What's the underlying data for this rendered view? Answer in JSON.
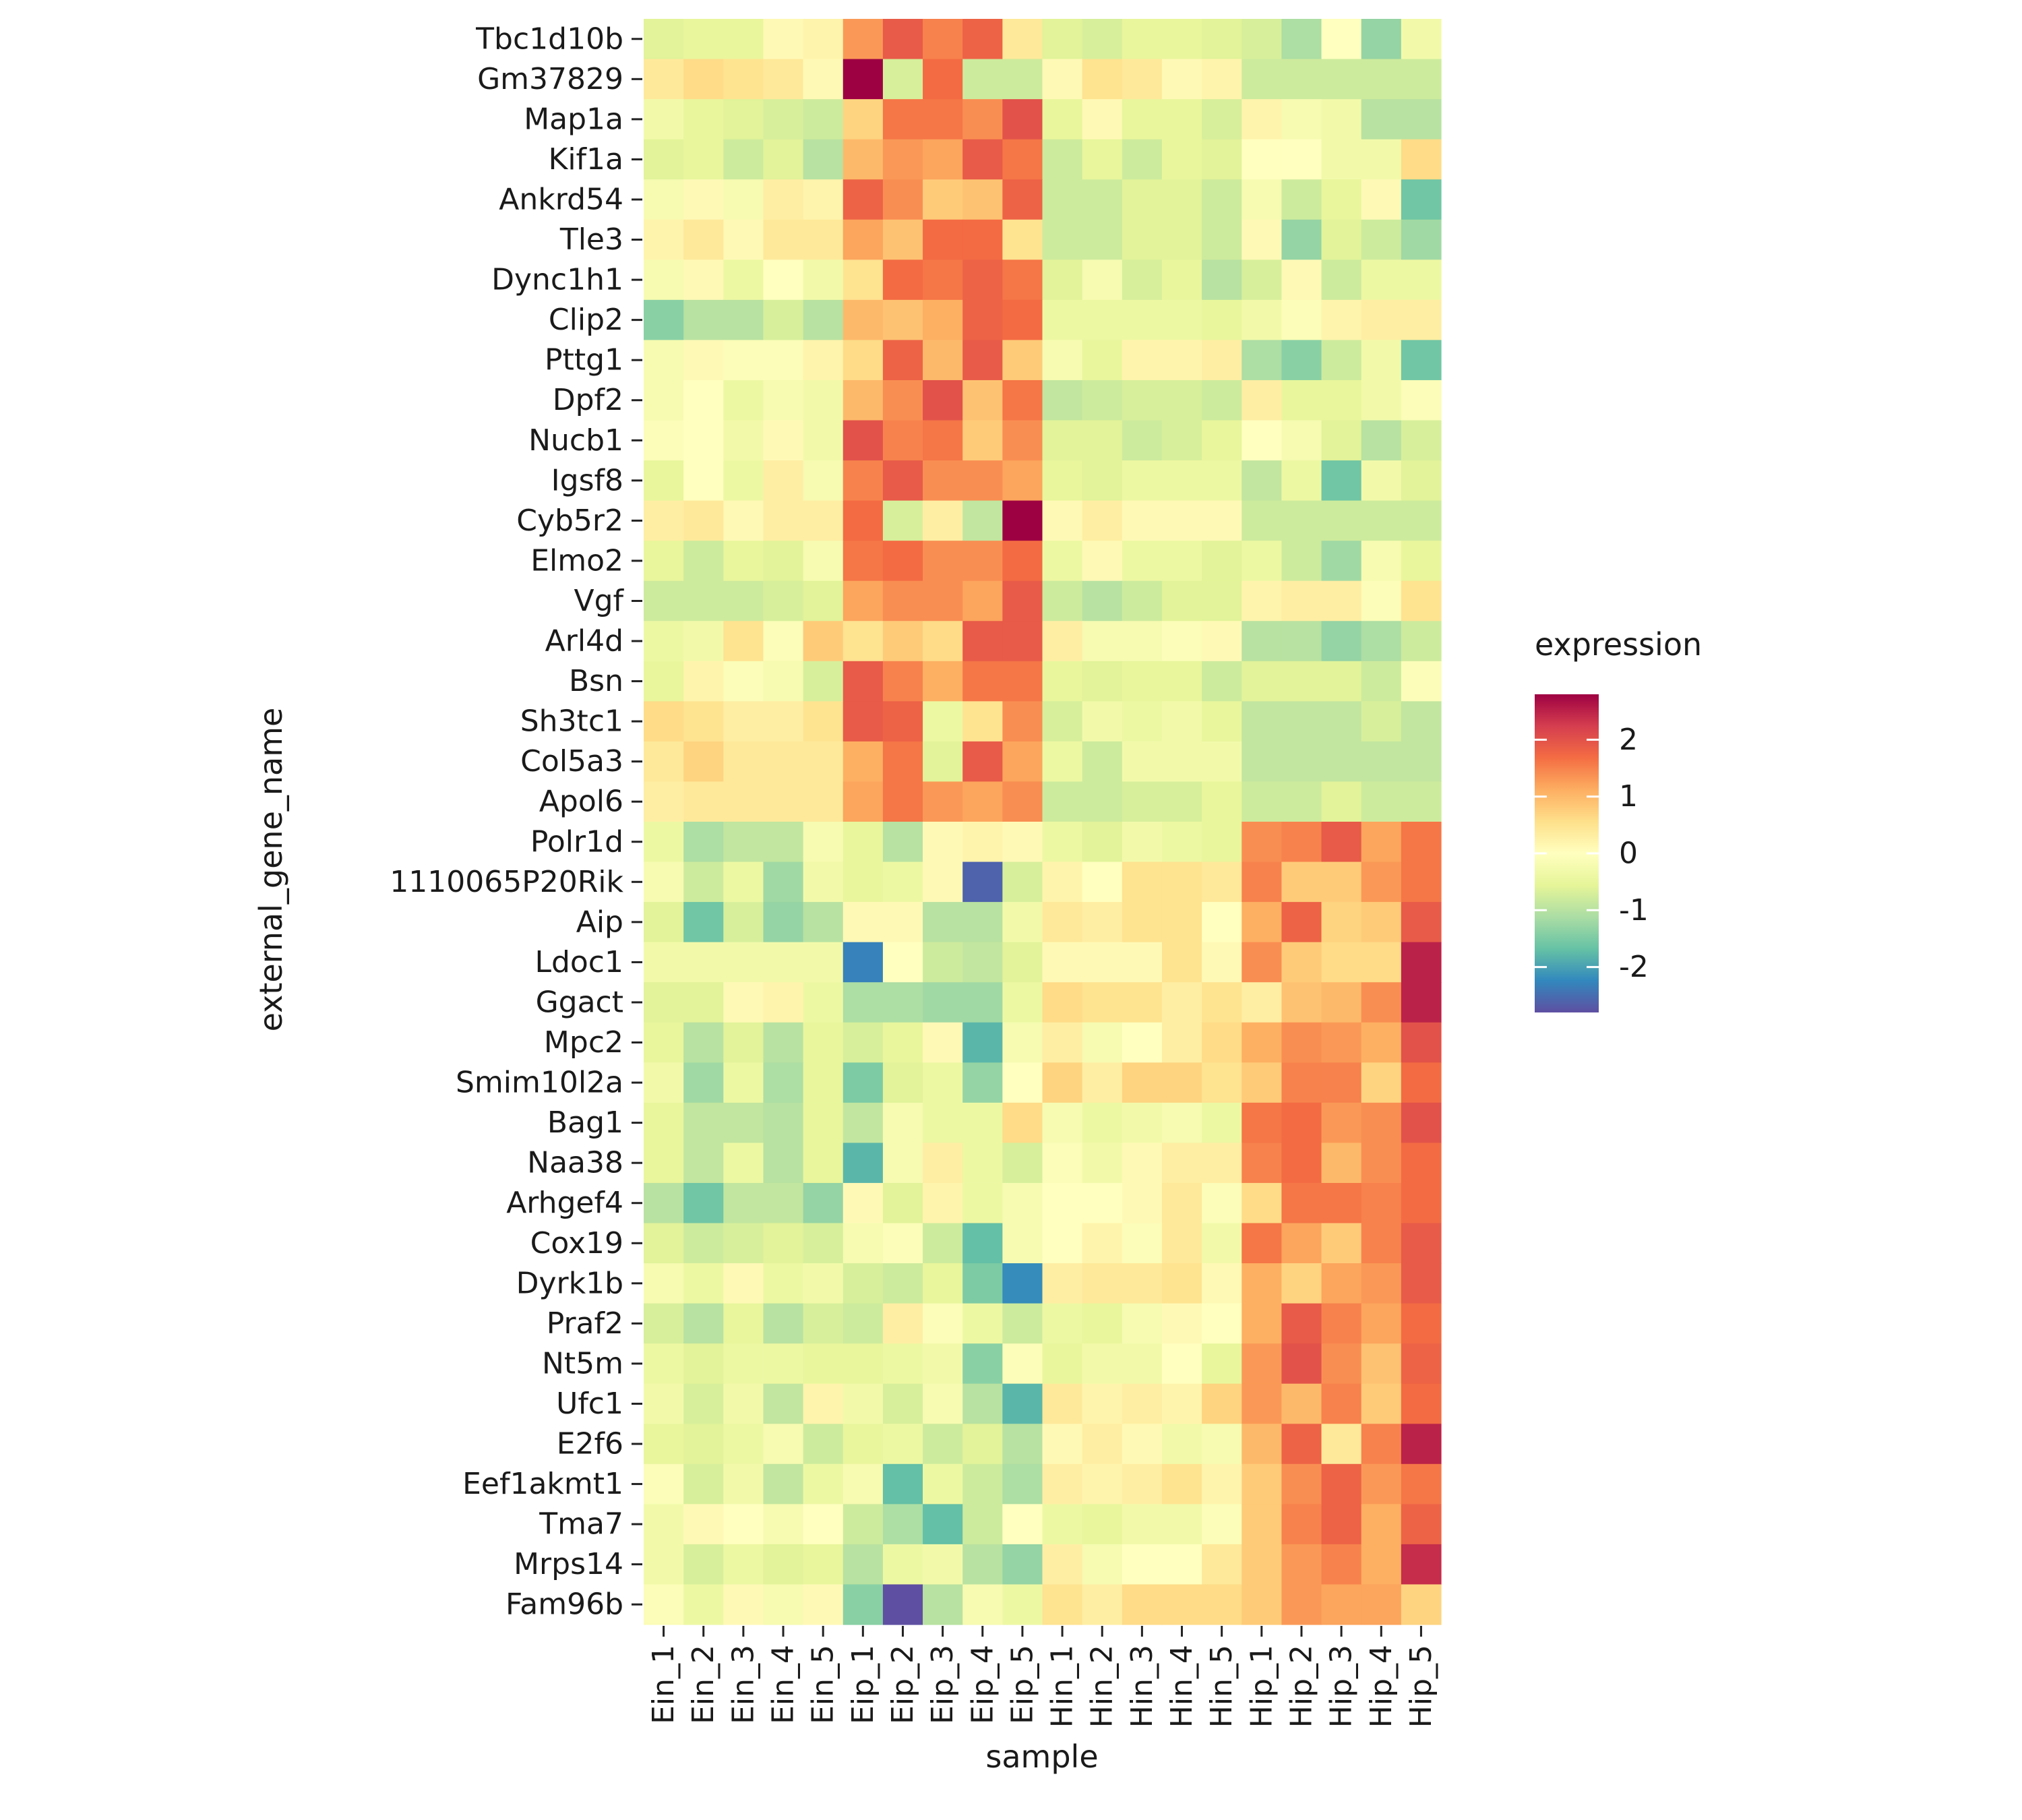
{
  "chart_data": {
    "type": "heatmap",
    "xlabel": "sample",
    "ylabel": "external_gene_name",
    "legend": {
      "title": "expression",
      "ticks": [
        2,
        1,
        0,
        -1,
        -2
      ],
      "range": [
        -2.8,
        2.8
      ],
      "position": "right"
    },
    "colormap": [
      "#5e4fa2",
      "#3288bd",
      "#66c2a5",
      "#abdda4",
      "#e6f598",
      "#ffffbf",
      "#fee08b",
      "#fdae61",
      "#f46d43",
      "#d53e4f",
      "#9e0142"
    ],
    "columns": [
      "Ein_1",
      "Ein_2",
      "Ein_3",
      "Ein_4",
      "Ein_5",
      "Eip_1",
      "Eip_2",
      "Eip_3",
      "Eip_4",
      "Eip_5",
      "Hin_1",
      "Hin_2",
      "Hin_3",
      "Hin_4",
      "Hin_5",
      "Hip_1",
      "Hip_2",
      "Hip_3",
      "Hip_4",
      "Hip_5"
    ],
    "rows": [
      "Tbc1d10b",
      "Gm37829",
      "Map1a",
      "Kif1a",
      "Ankrd54",
      "Tle3",
      "Dync1h1",
      "Clip2",
      "Pttg1",
      "Dpf2",
      "Nucb1",
      "Igsf8",
      "Cyb5r2",
      "Elmo2",
      "Vgf",
      "Arl4d",
      "Bsn",
      "Sh3tc1",
      "Col5a3",
      "Apol6",
      "Polr1d",
      "1110065P20Rik",
      "Aip",
      "Ldoc1",
      "Ggact",
      "Mpc2",
      "Smim10l2a",
      "Bag1",
      "Naa38",
      "Arhgef4",
      "Cox19",
      "Dyrk1b",
      "Praf2",
      "Nt5m",
      "Ufc1",
      "E2f6",
      "Eef1akmt1",
      "Tma7",
      "Mrps14",
      "Fam96b"
    ],
    "values": [
      [
        -0.6,
        -0.5,
        -0.5,
        0.1,
        0.2,
        1.3,
        1.9,
        1.5,
        1.8,
        0.4,
        -0.6,
        -0.7,
        -0.5,
        -0.5,
        -0.6,
        -0.7,
        -1.1,
        0.0,
        -1.3,
        -0.3
      ],
      [
        0.4,
        0.6,
        0.5,
        0.4,
        0.1,
        2.8,
        -0.7,
        1.7,
        -0.8,
        -0.8,
        0.1,
        0.5,
        0.4,
        0.1,
        0.2,
        -0.8,
        -0.8,
        -0.8,
        -0.8,
        -0.8
      ],
      [
        -0.3,
        -0.5,
        -0.6,
        -0.7,
        -0.8,
        0.7,
        1.6,
        1.6,
        1.4,
        2.0,
        -0.5,
        0.1,
        -0.5,
        -0.5,
        -0.7,
        0.2,
        -0.2,
        -0.3,
        -1.0,
        -1.0
      ],
      [
        -0.6,
        -0.5,
        -0.8,
        -0.6,
        -1.0,
        1.0,
        1.3,
        1.2,
        1.9,
        1.6,
        -0.8,
        -0.5,
        -0.8,
        -0.5,
        -0.6,
        0.0,
        0.0,
        -0.3,
        -0.3,
        0.6
      ],
      [
        -0.2,
        0.1,
        -0.2,
        0.3,
        0.2,
        1.8,
        1.4,
        0.8,
        0.9,
        1.8,
        -0.8,
        -0.8,
        -0.6,
        -0.6,
        -0.8,
        -0.2,
        -0.8,
        -0.5,
        0.1,
        -1.6
      ],
      [
        0.2,
        0.4,
        0.1,
        0.4,
        0.4,
        1.2,
        0.9,
        1.7,
        1.7,
        0.5,
        -0.8,
        -0.8,
        -0.6,
        -0.6,
        -0.8,
        0.1,
        -1.3,
        -0.6,
        -0.8,
        -1.2
      ],
      [
        -0.2,
        0.1,
        -0.4,
        0.0,
        -0.3,
        0.5,
        1.7,
        1.6,
        1.8,
        1.6,
        -0.6,
        -0.2,
        -0.7,
        -0.5,
        -1.0,
        -0.7,
        0.1,
        -0.8,
        -0.4,
        -0.4
      ],
      [
        -1.4,
        -1.0,
        -1.0,
        -0.7,
        -1.0,
        1.0,
        0.9,
        1.1,
        1.8,
        1.7,
        -0.4,
        -0.4,
        -0.4,
        -0.4,
        -0.5,
        -0.3,
        -0.1,
        0.2,
        0.3,
        0.3
      ],
      [
        -0.2,
        0.1,
        -0.1,
        -0.1,
        0.2,
        0.6,
        1.8,
        1.0,
        1.9,
        0.8,
        -0.2,
        -0.5,
        0.2,
        0.2,
        0.3,
        -1.1,
        -1.4,
        -0.8,
        -0.3,
        -1.6
      ],
      [
        -0.2,
        0.0,
        -0.4,
        -0.2,
        -0.3,
        1.0,
        1.4,
        2.0,
        0.9,
        1.6,
        -0.9,
        -0.8,
        -0.7,
        -0.7,
        -0.8,
        0.3,
        -0.5,
        -0.5,
        -0.3,
        -0.1
      ],
      [
        -0.1,
        0.0,
        -0.3,
        0.1,
        -0.3,
        2.0,
        1.5,
        1.6,
        0.8,
        1.4,
        -0.6,
        -0.6,
        -0.8,
        -0.7,
        -0.5,
        0.0,
        -0.2,
        -0.6,
        -1.0,
        -0.7
      ],
      [
        -0.5,
        0.0,
        -0.4,
        0.3,
        -0.2,
        1.5,
        1.9,
        1.4,
        1.4,
        1.2,
        -0.5,
        -0.6,
        -0.4,
        -0.4,
        -0.4,
        -0.9,
        -0.4,
        -1.6,
        -0.3,
        -0.6
      ],
      [
        0.3,
        0.4,
        0.1,
        0.3,
        0.3,
        1.7,
        -0.7,
        0.3,
        -0.9,
        2.8,
        0.1,
        0.3,
        0.1,
        0.1,
        0.1,
        -0.8,
        -0.8,
        -0.8,
        -0.8,
        -0.8
      ],
      [
        -0.5,
        -0.8,
        -0.5,
        -0.6,
        -0.2,
        1.6,
        1.7,
        1.4,
        1.4,
        1.7,
        -0.4,
        0.1,
        -0.4,
        -0.4,
        -0.6,
        -0.4,
        -0.8,
        -1.2,
        -0.2,
        -0.5
      ],
      [
        -0.8,
        -0.8,
        -0.8,
        -0.7,
        -0.6,
        1.2,
        1.4,
        1.4,
        1.2,
        1.9,
        -0.8,
        -1.0,
        -0.8,
        -0.6,
        -0.6,
        0.2,
        0.3,
        0.3,
        -0.1,
        0.5
      ],
      [
        -0.4,
        -0.3,
        0.5,
        -0.1,
        0.8,
        0.5,
        0.8,
        0.6,
        1.9,
        1.9,
        0.3,
        -0.2,
        -0.2,
        -0.1,
        0.1,
        -1.0,
        -1.0,
        -1.3,
        -1.1,
        -0.8
      ],
      [
        -0.5,
        0.2,
        -0.1,
        -0.2,
        -0.7,
        1.9,
        1.5,
        1.1,
        1.6,
        1.6,
        -0.5,
        -0.6,
        -0.5,
        -0.5,
        -0.8,
        -0.6,
        -0.6,
        -0.6,
        -0.8,
        -0.1
      ],
      [
        0.6,
        0.5,
        0.3,
        0.3,
        0.5,
        1.9,
        1.8,
        -0.4,
        0.5,
        1.4,
        -0.7,
        -0.3,
        -0.4,
        -0.3,
        -0.5,
        -0.9,
        -0.9,
        -0.9,
        -0.7,
        -0.9
      ],
      [
        0.4,
        0.7,
        0.4,
        0.4,
        0.4,
        1.1,
        1.6,
        -0.6,
        1.9,
        1.2,
        -0.4,
        -0.8,
        -0.3,
        -0.3,
        -0.3,
        -0.9,
        -0.9,
        -0.9,
        -0.9,
        -0.9
      ],
      [
        0.3,
        0.4,
        0.4,
        0.4,
        0.4,
        1.2,
        1.6,
        1.3,
        1.2,
        1.4,
        -0.8,
        -0.8,
        -0.7,
        -0.7,
        -0.5,
        -0.8,
        -0.8,
        -0.6,
        -0.8,
        -0.8
      ],
      [
        -0.4,
        -1.1,
        -0.9,
        -0.9,
        -0.2,
        -0.5,
        -1.0,
        0.1,
        0.2,
        0.1,
        -0.4,
        -0.6,
        -0.3,
        -0.4,
        -0.5,
        1.4,
        1.5,
        1.9,
        1.2,
        1.6
      ],
      [
        -0.2,
        -0.8,
        -0.4,
        -1.2,
        -0.3,
        -0.5,
        -0.4,
        0.1,
        -2.6,
        -0.7,
        0.2,
        0.0,
        0.5,
        0.5,
        0.4,
        1.5,
        0.8,
        0.8,
        1.3,
        1.6
      ],
      [
        -0.6,
        -1.6,
        -0.7,
        -1.3,
        -1.0,
        0.1,
        0.1,
        -1.0,
        -1.0,
        -0.3,
        0.4,
        0.3,
        0.5,
        0.5,
        0.0,
        1.1,
        1.8,
        0.7,
        0.8,
        1.9
      ],
      [
        -0.3,
        -0.3,
        -0.3,
        -0.3,
        -0.3,
        -2.3,
        0.0,
        -0.8,
        -0.9,
        -0.6,
        0.1,
        0.1,
        0.1,
        0.5,
        0.1,
        1.4,
        0.8,
        0.6,
        0.6,
        2.5
      ],
      [
        -0.6,
        -0.6,
        0.1,
        0.2,
        -0.4,
        -1.1,
        -1.1,
        -1.2,
        -1.2,
        -0.4,
        0.6,
        0.5,
        0.5,
        0.3,
        0.5,
        0.3,
        0.9,
        1.0,
        1.4,
        2.5
      ],
      [
        -0.5,
        -1.0,
        -0.6,
        -1.0,
        -0.5,
        -0.7,
        -0.5,
        0.1,
        -1.8,
        -0.2,
        0.3,
        -0.2,
        0.0,
        0.3,
        0.6,
        1.1,
        1.4,
        1.3,
        1.1,
        2.0
      ],
      [
        -0.3,
        -1.2,
        -0.4,
        -1.1,
        -0.5,
        -1.5,
        -0.6,
        -0.4,
        -1.3,
        0.0,
        0.7,
        0.3,
        0.7,
        0.7,
        0.5,
        0.8,
        1.5,
        1.5,
        0.7,
        1.7
      ],
      [
        -0.5,
        -0.9,
        -0.9,
        -1.0,
        -0.5,
        -0.9,
        -0.2,
        -0.4,
        -0.4,
        0.6,
        -0.2,
        -0.4,
        -0.3,
        -0.2,
        -0.4,
        1.6,
        1.7,
        1.3,
        1.4,
        2.0
      ],
      [
        -0.5,
        -0.9,
        -0.4,
        -1.0,
        -0.5,
        -1.8,
        -0.2,
        0.3,
        -0.4,
        -0.7,
        -0.1,
        -0.3,
        0.1,
        0.3,
        0.3,
        1.5,
        1.7,
        1.0,
        1.4,
        1.7
      ],
      [
        -1.0,
        -1.6,
        -0.9,
        -0.9,
        -1.3,
        0.1,
        -0.6,
        0.2,
        -0.4,
        -0.2,
        0.0,
        0.0,
        0.1,
        0.4,
        -0.1,
        0.6,
        1.6,
        1.6,
        1.5,
        1.7
      ],
      [
        -0.6,
        -0.8,
        -0.7,
        -0.6,
        -0.7,
        -0.2,
        -0.1,
        -0.8,
        -1.7,
        -0.2,
        0.0,
        0.2,
        -0.1,
        0.4,
        -0.3,
        1.6,
        1.2,
        0.8,
        1.5,
        1.9
      ],
      [
        -0.2,
        -0.4,
        0.1,
        -0.4,
        -0.3,
        -0.7,
        -0.8,
        -0.5,
        -1.5,
        -2.2,
        0.3,
        0.4,
        0.4,
        0.5,
        0.1,
        1.1,
        0.7,
        1.2,
        1.3,
        1.9
      ],
      [
        -0.7,
        -1.0,
        -0.5,
        -1.0,
        -0.7,
        -0.8,
        0.3,
        -0.1,
        -0.4,
        -0.8,
        -0.4,
        -0.5,
        -0.2,
        0.1,
        0.0,
        1.1,
        1.9,
        1.5,
        1.2,
        1.7
      ],
      [
        -0.4,
        -0.6,
        -0.4,
        -0.4,
        -0.5,
        -0.5,
        -0.4,
        -0.3,
        -1.4,
        -0.1,
        -0.5,
        -0.3,
        -0.3,
        0.0,
        -0.5,
        1.3,
        2.0,
        1.4,
        0.9,
        1.8
      ],
      [
        -0.3,
        -0.7,
        -0.3,
        -0.9,
        0.2,
        -0.3,
        -0.7,
        -0.2,
        -1.0,
        -1.8,
        0.4,
        0.2,
        0.3,
        0.2,
        0.7,
        1.3,
        1.0,
        1.5,
        0.8,
        1.7
      ],
      [
        -0.5,
        -0.6,
        -0.4,
        -0.2,
        -0.8,
        -0.5,
        -0.4,
        -0.8,
        -0.6,
        -1.0,
        0.1,
        0.3,
        0.1,
        -0.3,
        -0.2,
        1.0,
        1.8,
        0.4,
        1.5,
        2.5
      ],
      [
        -0.1,
        -0.7,
        -0.3,
        -0.9,
        -0.4,
        -0.2,
        -1.7,
        -0.4,
        -0.8,
        -1.1,
        0.3,
        0.2,
        0.3,
        0.5,
        0.2,
        0.8,
        1.4,
        1.8,
        1.3,
        1.6
      ],
      [
        -0.3,
        0.1,
        0.0,
        -0.2,
        0.0,
        -0.8,
        -1.1,
        -1.7,
        -0.8,
        0.0,
        -0.4,
        -0.5,
        -0.3,
        -0.3,
        -0.1,
        0.8,
        1.5,
        1.8,
        1.1,
        1.8
      ],
      [
        -0.3,
        -0.7,
        -0.4,
        -0.6,
        -0.5,
        -1.0,
        -0.4,
        -0.3,
        -1.0,
        -1.3,
        0.3,
        -0.2,
        0.0,
        0.0,
        0.4,
        0.8,
        1.3,
        1.5,
        1.1,
        2.4
      ],
      [
        -0.1,
        -0.4,
        0.1,
        -0.2,
        0.1,
        -1.4,
        -3.0,
        -1.0,
        -0.2,
        -0.4,
        0.5,
        0.3,
        0.6,
        0.6,
        0.6,
        0.8,
        1.3,
        1.2,
        1.2,
        0.7
      ]
    ]
  }
}
